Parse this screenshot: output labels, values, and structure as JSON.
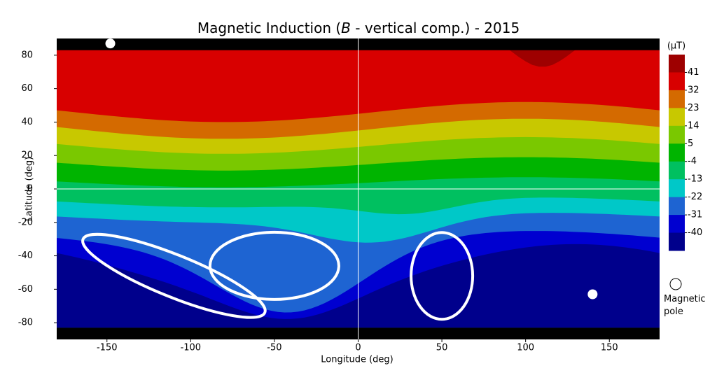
{
  "chart_data": {
    "type": "heatmap",
    "title": {
      "prefix": "Magnetic Induction (",
      "variable": "B",
      "suffix": " - vertical comp.) - 2015"
    },
    "x_label": "Longitude (deg)",
    "y_label": "Latitude (deg)",
    "xlim": [
      -180,
      180
    ],
    "xticks": [
      -150,
      -100,
      -50,
      0,
      50,
      100,
      150
    ],
    "ylim": [
      -90,
      90
    ],
    "yticks": [
      -80,
      -60,
      -40,
      -20,
      0,
      20,
      40,
      60,
      80
    ],
    "colorbar": {
      "label": "(µT)",
      "levels": [
        41,
        32,
        23,
        14,
        5,
        -4,
        -13,
        -22,
        -31,
        -40
      ],
      "colors": [
        "#9e0000",
        "#d80000",
        "#d46a00",
        "#c8c800",
        "#7ac800",
        "#00b400",
        "#00c060",
        "#00c8c8",
        "#1e64d2",
        "#0000d0",
        "#00008c"
      ]
    },
    "series": [
      {
        "name": "Magnetic pole",
        "color": "#ffffff",
        "x": [
          -148,
          140
        ],
        "y": [
          87,
          -63
        ]
      }
    ]
  }
}
